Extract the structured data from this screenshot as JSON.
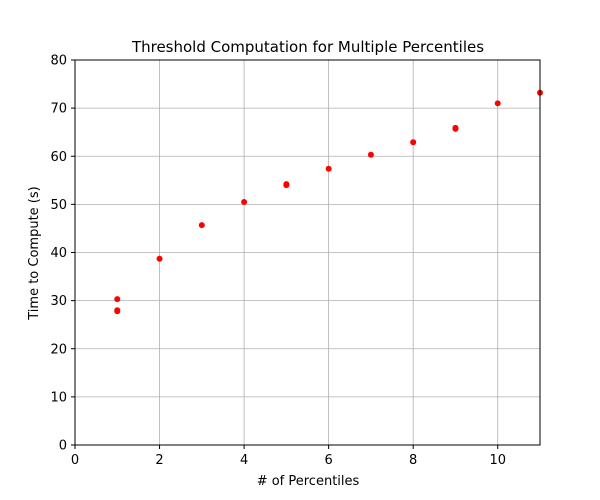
{
  "chart_data": {
    "type": "scatter",
    "title": "Threshold Computation for Multiple Percentiles",
    "xlabel": "# of Percentiles",
    "ylabel": "Time to Compute (s)",
    "xlim": [
      0,
      11
    ],
    "ylim": [
      0,
      80
    ],
    "xticks": [
      0,
      2,
      4,
      6,
      8,
      10
    ],
    "yticks": [
      0,
      10,
      20,
      30,
      40,
      50,
      60,
      70,
      80
    ],
    "grid": true,
    "marker_color": "#ff0000",
    "points": [
      {
        "x": 1,
        "y": 27.8
      },
      {
        "x": 1,
        "y": 28.0
      },
      {
        "x": 1,
        "y": 30.3
      },
      {
        "x": 2,
        "y": 38.7
      },
      {
        "x": 3,
        "y": 45.7
      },
      {
        "x": 4,
        "y": 50.5
      },
      {
        "x": 5,
        "y": 54.0
      },
      {
        "x": 5,
        "y": 54.2
      },
      {
        "x": 6,
        "y": 57.4
      },
      {
        "x": 7,
        "y": 60.3
      },
      {
        "x": 8,
        "y": 62.9
      },
      {
        "x": 9,
        "y": 65.7
      },
      {
        "x": 9,
        "y": 65.9
      },
      {
        "x": 10,
        "y": 71.0
      },
      {
        "x": 11,
        "y": 73.2
      }
    ]
  }
}
